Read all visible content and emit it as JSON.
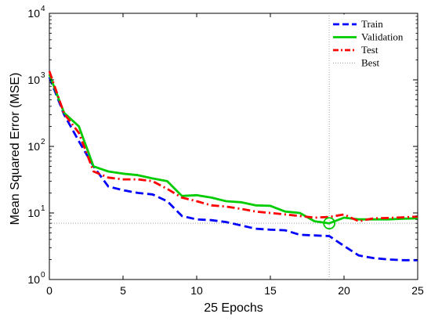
{
  "chart_data": {
    "type": "line",
    "title": "",
    "xlabel": "25 Epochs",
    "ylabel": "Mean Squared Error  (MSE)",
    "xlim": [
      0,
      25
    ],
    "ylim": [
      1,
      10000
    ],
    "yscale": "log",
    "grid": false,
    "legend_position": "top-right",
    "x_ticks": [
      0,
      5,
      10,
      15,
      20,
      25
    ],
    "x_tick_labels": [
      "0",
      "5",
      "10",
      "15",
      "20",
      "25"
    ],
    "y_ticks": [
      1,
      10,
      100,
      1000,
      10000
    ],
    "y_tick_labels": [
      {
        "base": "10",
        "exp": "0"
      },
      {
        "base": "10",
        "exp": "1"
      },
      {
        "base": "10",
        "exp": "2"
      },
      {
        "base": "10",
        "exp": "3"
      },
      {
        "base": "10",
        "exp": "4"
      }
    ],
    "x": [
      0,
      1,
      2,
      3,
      4,
      5,
      6,
      7,
      8,
      9,
      10,
      11,
      12,
      13,
      14,
      15,
      16,
      17,
      18,
      19,
      20,
      21,
      22,
      23,
      24,
      25
    ],
    "series": [
      {
        "name": "Train",
        "color": "#0000ff",
        "style": "dashed",
        "values": [
          1100,
          300,
          120,
          50,
          25,
          22,
          20,
          19,
          15,
          9,
          8,
          7.8,
          7.3,
          6.5,
          5.8,
          5.6,
          5.5,
          4.7,
          4.6,
          4.5,
          3.2,
          2.3,
          2.1,
          2.0,
          1.95,
          1.95
        ]
      },
      {
        "name": "Validation",
        "color": "#00cc00",
        "style": "solid",
        "values": [
          1200,
          320,
          200,
          50,
          42,
          39,
          37,
          33,
          30,
          18,
          18.5,
          17,
          15,
          14.5,
          13,
          12.8,
          10.5,
          10,
          7.5,
          7.0,
          8.5,
          8.0,
          8.0,
          8.0,
          8.2,
          8.3
        ]
      },
      {
        "name": "Test",
        "color": "#ff0000",
        "style": "dash-dot",
        "values": [
          1350,
          310,
          160,
          42,
          34,
          32,
          32,
          30,
          23,
          17,
          15,
          13,
          12.5,
          11.5,
          10.5,
          10,
          9.5,
          9,
          8.5,
          8.7,
          9.5,
          7.5,
          8.3,
          8.4,
          8.6,
          8.8
        ]
      }
    ],
    "best": {
      "label": "Best",
      "epoch": 19,
      "value": 7.0,
      "color": "#999999",
      "style": "dotted"
    }
  }
}
